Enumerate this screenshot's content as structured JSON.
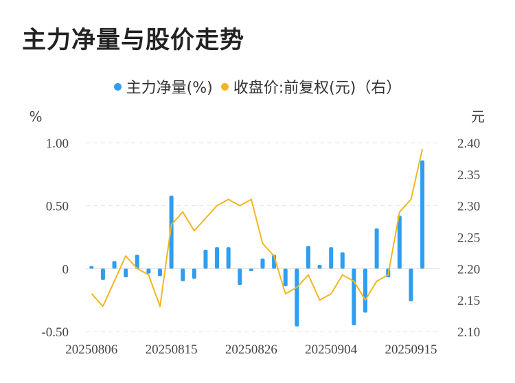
{
  "title": "主力净量与股价走势",
  "colors": {
    "bar": "#2f9ef0",
    "line": "#f3b61f",
    "grid": "#e6e6e6"
  },
  "chart_data": {
    "type": "bar+line",
    "title": "主力净量与股价走势",
    "legend": [
      "主力净量(%)",
      "收盘价:前复权(元)（右）"
    ],
    "left_unit": "%",
    "right_unit": "元",
    "left_ylim": [
      -0.5,
      1.0
    ],
    "left_ticks": [
      "1.00",
      "0.50",
      "0",
      "-0.50"
    ],
    "right_ylim": [
      2.1,
      2.4
    ],
    "right_ticks": [
      "2.40",
      "2.35",
      "2.30",
      "2.25",
      "2.20",
      "2.15",
      "2.10"
    ],
    "x_tick_labels": [
      "20250806",
      "20250815",
      "20250826",
      "20250904",
      "20250915"
    ],
    "x": [
      "20250806",
      "20250807",
      "20250808",
      "20250811",
      "20250812",
      "20250813",
      "20250814",
      "20250815",
      "20250818",
      "20250819",
      "20250820",
      "20250821",
      "20250822",
      "20250825",
      "20250826",
      "20250827",
      "20250828",
      "20250829",
      "20250901",
      "20250902",
      "20250903",
      "20250904",
      "20250905",
      "20250908",
      "20250909",
      "20250910",
      "20250911",
      "20250912",
      "20250915",
      "20250916",
      "20250917"
    ],
    "series": [
      {
        "name": "主力净量(%)",
        "type": "bar",
        "values": [
          0.02,
          -0.09,
          0.06,
          -0.07,
          0.11,
          -0.04,
          -0.06,
          0.58,
          -0.1,
          -0.08,
          0.15,
          0.17,
          0.17,
          -0.13,
          -0.02,
          0.08,
          0.11,
          -0.14,
          -0.46,
          0.18,
          0.03,
          0.17,
          0.13,
          -0.45,
          -0.35,
          0.32,
          -0.07,
          0.42,
          -0.26,
          0.86,
          null
        ]
      },
      {
        "name": "收盘价:前复权(元)（右）",
        "type": "line",
        "values": [
          2.16,
          2.14,
          2.18,
          2.22,
          2.2,
          2.19,
          2.14,
          2.27,
          2.29,
          2.26,
          2.28,
          2.3,
          2.31,
          2.3,
          2.31,
          2.24,
          2.22,
          2.16,
          2.17,
          2.19,
          2.15,
          2.16,
          2.19,
          2.18,
          2.15,
          2.18,
          2.19,
          2.29,
          2.31,
          2.39,
          null
        ]
      }
    ],
    "grid": true,
    "legend_position": "top-center"
  }
}
